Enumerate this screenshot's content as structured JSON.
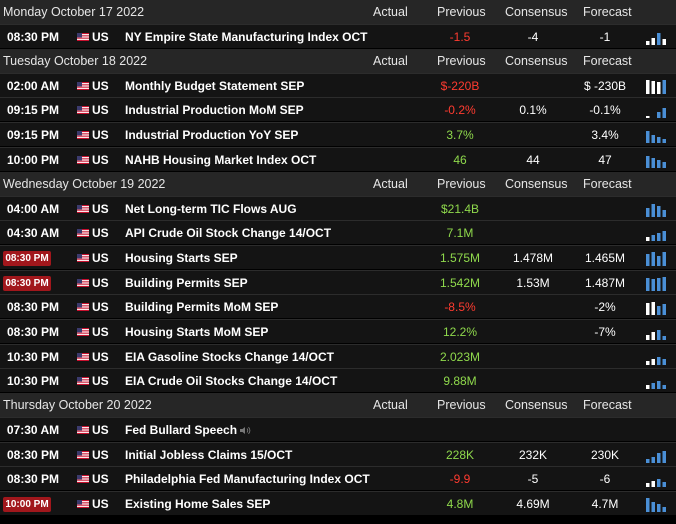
{
  "columns": {
    "actual": "Actual",
    "previous": "Previous",
    "consensus": "Consensus",
    "forecast": "Forecast"
  },
  "colors": {
    "negative": "#ff3b30",
    "positive": "#8fd94c",
    "highlight_time": "#a1171c",
    "bar": "#4a8fd6"
  },
  "rows": [
    {
      "type": "day",
      "title": "Monday October 17 2022",
      "show_headers": true
    },
    {
      "type": "event",
      "time": "08:30 PM",
      "highlight": false,
      "country": "US",
      "event": "NY Empire State Manufacturing Index OCT",
      "actual": "",
      "previous": "-1.5",
      "previous_color": "red",
      "consensus": "-4",
      "forecast": "-1",
      "chart": "mini-bar-chart-icon"
    },
    {
      "type": "day",
      "title": "Tuesday October 18 2022",
      "show_headers": true
    },
    {
      "type": "event",
      "time": "02:00 AM",
      "highlight": false,
      "country": "US",
      "event": "Monthly Budget Statement SEP",
      "actual": "",
      "previous": "$-220B",
      "previous_color": "red",
      "consensus": "",
      "forecast": "$ -230B",
      "chart": "mini-bar-chart-icon"
    },
    {
      "type": "event",
      "time": "09:15 PM",
      "highlight": false,
      "country": "US",
      "event": "Industrial Production MoM SEP",
      "actual": "",
      "previous": "-0.2%",
      "previous_color": "red",
      "consensus": "0.1%",
      "forecast": "-0.1%",
      "chart": "mini-bar-chart-icon"
    },
    {
      "type": "event",
      "time": "09:15 PM",
      "highlight": false,
      "country": "US",
      "event": "Industrial Production YoY SEP",
      "actual": "",
      "previous": "3.7%",
      "previous_color": "green",
      "consensus": "",
      "forecast": "3.4%",
      "chart": "mini-bar-chart-icon"
    },
    {
      "type": "event",
      "time": "10:00 PM",
      "highlight": false,
      "country": "US",
      "event": "NAHB Housing Market Index OCT",
      "actual": "",
      "previous": "46",
      "previous_color": "green",
      "consensus": "44",
      "forecast": "47",
      "chart": "mini-bar-chart-icon"
    },
    {
      "type": "day",
      "title": "Wednesday October 19 2022",
      "show_headers": true
    },
    {
      "type": "event",
      "time": "04:00 AM",
      "highlight": false,
      "country": "US",
      "event": "Net Long-term TIC Flows AUG",
      "actual": "",
      "previous": "$21.4B",
      "previous_color": "green",
      "consensus": "",
      "forecast": "",
      "chart": "mini-bar-chart-icon"
    },
    {
      "type": "event",
      "time": "04:30 AM",
      "highlight": false,
      "country": "US",
      "event": "API Crude Oil Stock Change 14/OCT",
      "actual": "",
      "previous": "7.1M",
      "previous_color": "green",
      "consensus": "",
      "forecast": "",
      "chart": "mini-bar-chart-icon"
    },
    {
      "type": "event",
      "time": "08:30 PM",
      "highlight": true,
      "country": "US",
      "event": "Housing Starts SEP",
      "actual": "",
      "previous": "1.575M",
      "previous_color": "green",
      "consensus": "1.478M",
      "forecast": "1.465M",
      "chart": "mini-bar-chart-icon"
    },
    {
      "type": "event",
      "time": "08:30 PM",
      "highlight": true,
      "country": "US",
      "event": "Building Permits SEP",
      "actual": "",
      "previous": "1.542M",
      "previous_color": "green",
      "consensus": "1.53M",
      "forecast": "1.487M",
      "chart": "mini-bar-chart-icon"
    },
    {
      "type": "event",
      "time": "08:30 PM",
      "highlight": false,
      "country": "US",
      "event": "Building Permits MoM SEP",
      "actual": "",
      "previous": "-8.5%",
      "previous_color": "red",
      "consensus": "",
      "forecast": "-2%",
      "chart": "mini-bar-chart-icon"
    },
    {
      "type": "event",
      "time": "08:30 PM",
      "highlight": false,
      "country": "US",
      "event": "Housing Starts MoM SEP",
      "actual": "",
      "previous": "12.2%",
      "previous_color": "green",
      "consensus": "",
      "forecast": "-7%",
      "chart": "mini-bar-chart-icon"
    },
    {
      "type": "event",
      "time": "10:30 PM",
      "highlight": false,
      "country": "US",
      "event": "EIA Gasoline Stocks Change 14/OCT",
      "actual": "",
      "previous": "2.023M",
      "previous_color": "green",
      "consensus": "",
      "forecast": "",
      "chart": "mini-bar-chart-icon"
    },
    {
      "type": "event",
      "time": "10:30 PM",
      "highlight": false,
      "country": "US",
      "event": "EIA Crude Oil Stocks Change 14/OCT",
      "actual": "",
      "previous": "9.88M",
      "previous_color": "green",
      "consensus": "",
      "forecast": "",
      "chart": "mini-bar-chart-icon"
    },
    {
      "type": "day",
      "title": "Thursday October 20 2022",
      "show_headers": true
    },
    {
      "type": "event",
      "time": "07:30 AM",
      "highlight": false,
      "country": "US",
      "event": "Fed Bullard Speech",
      "speech": true,
      "actual": "",
      "previous": "",
      "previous_color": "green",
      "consensus": "",
      "forecast": "",
      "chart": ""
    },
    {
      "type": "event",
      "time": "08:30 PM",
      "highlight": false,
      "country": "US",
      "event": "Initial Jobless Claims 15/OCT",
      "actual": "",
      "previous": "228K",
      "previous_color": "green",
      "consensus": "232K",
      "forecast": "230K",
      "chart": "mini-bar-chart-icon"
    },
    {
      "type": "event",
      "time": "08:30 PM",
      "highlight": false,
      "country": "US",
      "event": "Philadelphia Fed Manufacturing Index OCT",
      "actual": "",
      "previous": "-9.9",
      "previous_color": "red",
      "consensus": "-5",
      "forecast": "-6",
      "chart": "mini-bar-chart-icon"
    },
    {
      "type": "event",
      "time": "10:00 PM",
      "highlight": true,
      "country": "US",
      "event": "Existing Home Sales SEP",
      "actual": "",
      "previous": "4.8M",
      "previous_color": "green",
      "consensus": "4.69M",
      "forecast": "4.7M",
      "chart": "mini-bar-chart-icon"
    }
  ]
}
